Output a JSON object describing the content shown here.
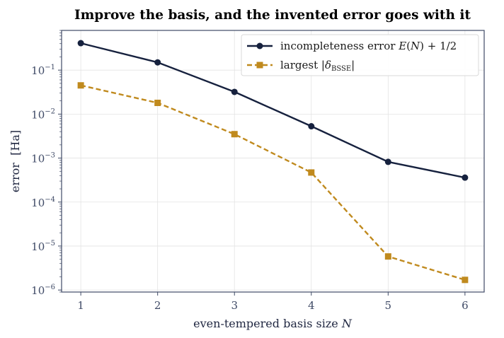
{
  "chart_data": {
    "type": "line",
    "title": "Improve the basis, and the invented error goes with it",
    "xlabel": "even-tempered basis size N",
    "ylabel": "error  [Ha]",
    "x": [
      1,
      2,
      3,
      4,
      5,
      6
    ],
    "xticks": [
      "1",
      "2",
      "3",
      "4",
      "5",
      "6"
    ],
    "xlim": [
      0.75,
      6.25
    ],
    "yscale": "log",
    "ylim": [
      9e-07,
      0.8
    ],
    "yticks": [
      {
        "value": 0.1,
        "base": "10",
        "exp": "−1"
      },
      {
        "value": 0.01,
        "base": "10",
        "exp": "−2"
      },
      {
        "value": 0.001,
        "base": "10",
        "exp": "−3"
      },
      {
        "value": 0.0001,
        "base": "10",
        "exp": "−4"
      },
      {
        "value": 1e-05,
        "base": "10",
        "exp": "−5"
      },
      {
        "value": 1e-06,
        "base": "10",
        "exp": "−6"
      }
    ],
    "grid": true,
    "legend_position": "top-right",
    "series": [
      {
        "name": "incompleteness error E(N) + 1/2",
        "values": [
          0.41,
          0.15,
          0.032,
          0.0053,
          0.00082,
          0.00036
        ],
        "color": "#16213e",
        "marker": "circle",
        "linestyle": "solid"
      },
      {
        "name": "largest |δBSSE|",
        "values": [
          0.045,
          0.018,
          0.0035,
          0.00047,
          5.8e-06,
          1.7e-06
        ],
        "color": "#c08a1e",
        "marker": "square",
        "linestyle": "dashed"
      }
    ]
  }
}
